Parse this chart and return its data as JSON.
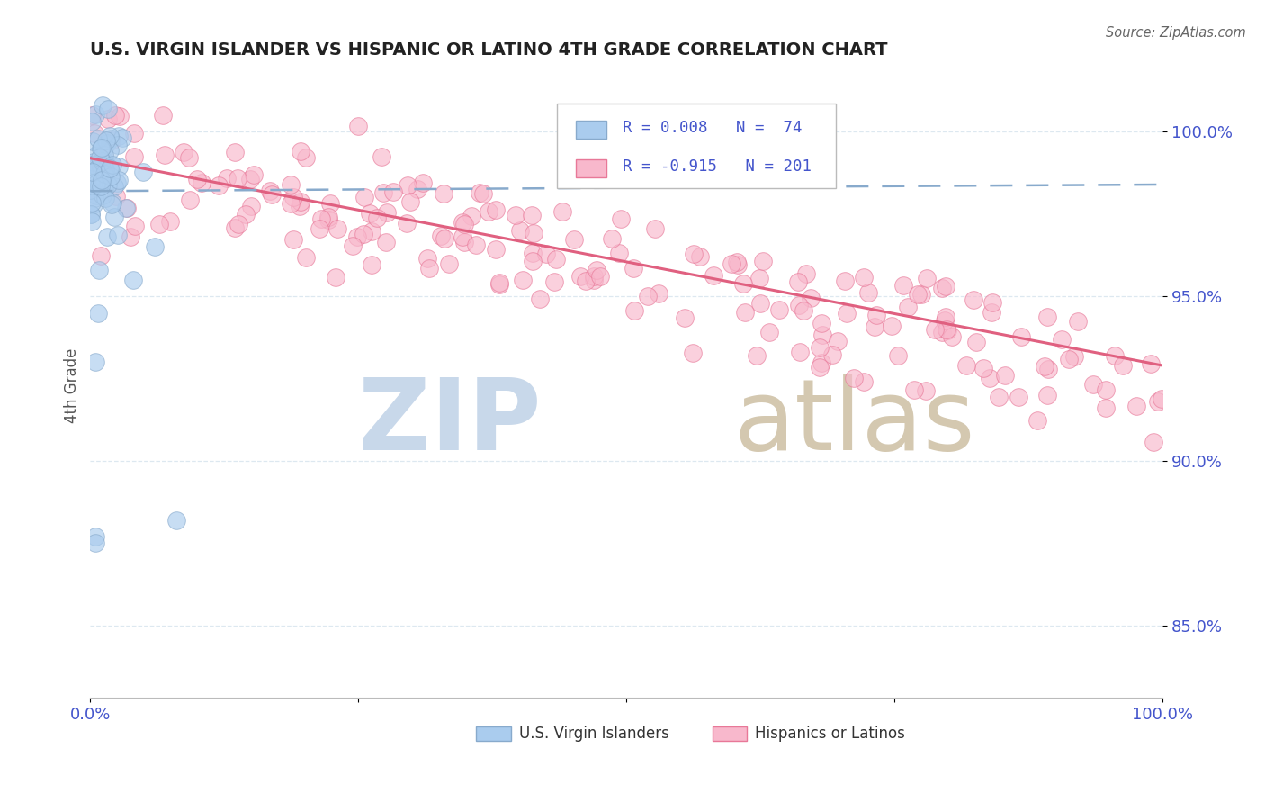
{
  "title": "U.S. VIRGIN ISLANDER VS HISPANIC OR LATINO 4TH GRADE CORRELATION CHART",
  "source": "Source: ZipAtlas.com",
  "ylabel": "4th Grade",
  "xlim": [
    0.0,
    1.0
  ],
  "ylim": [
    0.828,
    1.018
  ],
  "yticks": [
    0.85,
    0.9,
    0.95,
    1.0
  ],
  "ytick_labels": [
    "85.0%",
    "90.0%",
    "95.0%",
    "100.0%"
  ],
  "xticks": [
    0.0,
    0.25,
    0.5,
    0.75,
    1.0
  ],
  "xtick_labels": [
    "0.0%",
    "",
    "",
    "",
    "100.0%"
  ],
  "legend_R1": "R = 0.008",
  "legend_N1": "N =  74",
  "legend_R2": "R = -0.915",
  "legend_N2": "N = 201",
  "blue_color": "#aaccee",
  "blue_edge_color": "#88aacc",
  "pink_color": "#f8b8cc",
  "pink_edge_color": "#e87898",
  "trend_blue_color": "#88aacc",
  "trend_pink_color": "#e06080",
  "axis_color": "#4455cc",
  "title_color": "#222222",
  "watermark_zip_color": "#c8d8ea",
  "watermark_atlas_color": "#d4c8b0",
  "grid_color": "#dde8f0",
  "background_color": "#ffffff"
}
